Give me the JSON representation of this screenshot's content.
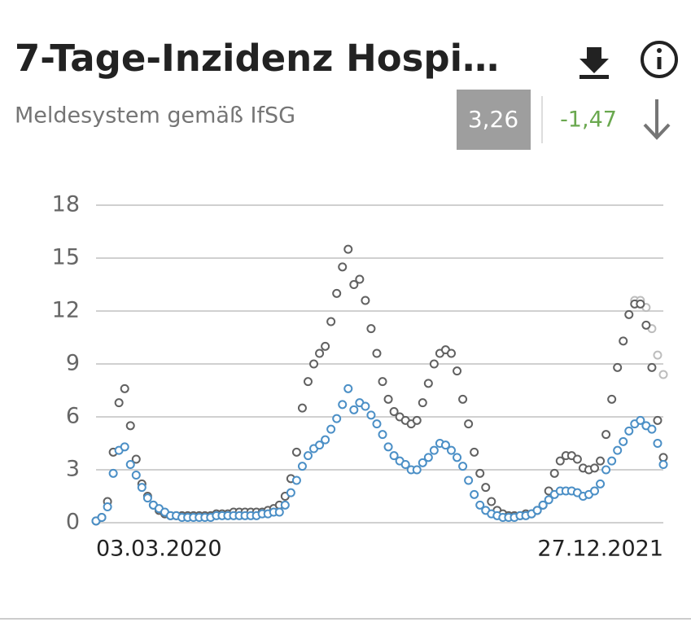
{
  "header": {
    "title": "7-Tage-Inzidenz Hospi…",
    "subtitle": "Meldesystem gemäß IfSG",
    "value": "3,26",
    "change": "-1,47"
  },
  "chart_data": {
    "type": "scatter",
    "categories": [
      "03.03.2020",
      null,
      null,
      null,
      null,
      null,
      null,
      null,
      null,
      null,
      null,
      null,
      null,
      null,
      null,
      null,
      null,
      null,
      null,
      null,
      null,
      null,
      null,
      null,
      null,
      null,
      null,
      null,
      null,
      null,
      null,
      null,
      null,
      null,
      null,
      null,
      null,
      null,
      null,
      null,
      null,
      null,
      null,
      null,
      null,
      null,
      null,
      null,
      null,
      null,
      null,
      null,
      null,
      null,
      null,
      null,
      null,
      null,
      null,
      null,
      null,
      null,
      null,
      null,
      null,
      null,
      null,
      null,
      null,
      null,
      null,
      null,
      null,
      null,
      null,
      null,
      null,
      null,
      null,
      null,
      null,
      null,
      null,
      null,
      null,
      null,
      null,
      null,
      null,
      null,
      null,
      null,
      null,
      null,
      null,
      null,
      null,
      null,
      null,
      "27.12.2021"
    ],
    "series": [
      {
        "color": "#bdbdbd",
        "values": [
          null,
          null,
          null,
          null,
          null,
          null,
          null,
          null,
          null,
          null,
          null,
          null,
          null,
          null,
          null,
          null,
          null,
          null,
          null,
          null,
          null,
          null,
          null,
          null,
          null,
          null,
          null,
          null,
          null,
          null,
          null,
          null,
          null,
          null,
          null,
          null,
          null,
          null,
          null,
          null,
          null,
          null,
          null,
          null,
          null,
          null,
          null,
          null,
          null,
          null,
          null,
          null,
          null,
          null,
          null,
          null,
          null,
          null,
          null,
          null,
          null,
          null,
          null,
          null,
          null,
          null,
          null,
          null,
          null,
          null,
          null,
          null,
          null,
          null,
          null,
          null,
          null,
          null,
          null,
          null,
          null,
          null,
          null,
          null,
          null,
          null,
          null,
          null,
          null,
          null,
          null,
          null,
          null,
          null,
          12.6,
          12.6,
          12.2,
          11,
          9.5,
          8.4
        ]
      },
      {
        "color": "#616161",
        "values": [
          0.1,
          0.3,
          1.2,
          4,
          6.8,
          7.6,
          5.5,
          3.6,
          2.2,
          1.5,
          1,
          0.7,
          0.5,
          0.4,
          0.4,
          0.4,
          0.4,
          0.4,
          0.4,
          0.4,
          0.4,
          0.5,
          0.5,
          0.5,
          0.6,
          0.6,
          0.6,
          0.6,
          0.6,
          0.6,
          0.7,
          0.8,
          1,
          1.5,
          2.5,
          4,
          6.5,
          8,
          9,
          9.6,
          10,
          11.4,
          13,
          14.5,
          15.5,
          13.5,
          13.8,
          12.6,
          11,
          9.6,
          8,
          7,
          6.3,
          6,
          5.8,
          5.6,
          5.8,
          6.8,
          7.9,
          9,
          9.6,
          9.8,
          9.6,
          8.6,
          7,
          5.6,
          4,
          2.8,
          2,
          1.2,
          0.7,
          0.5,
          0.4,
          0.4,
          0.4,
          0.5,
          0.5,
          0.7,
          1,
          1.8,
          2.8,
          3.5,
          3.8,
          3.8,
          3.6,
          3.1,
          3,
          3.1,
          3.5,
          5,
          7,
          8.8,
          10.3,
          11.8,
          12.4,
          12.4,
          11.2,
          8.8,
          5.8,
          3.7
        ]
      },
      {
        "color": "#4b8fc6",
        "values": [
          0.1,
          0.3,
          0.9,
          2.8,
          4.1,
          4.3,
          3.3,
          2.7,
          2,
          1.4,
          1,
          0.8,
          0.6,
          0.4,
          0.4,
          0.3,
          0.3,
          0.3,
          0.3,
          0.3,
          0.3,
          0.4,
          0.4,
          0.4,
          0.4,
          0.4,
          0.4,
          0.4,
          0.4,
          0.5,
          0.5,
          0.6,
          0.6,
          1,
          1.7,
          2.4,
          3.2,
          3.8,
          4.2,
          4.4,
          4.7,
          5.3,
          5.9,
          6.7,
          7.6,
          6.4,
          6.8,
          6.6,
          6.1,
          5.6,
          5,
          4.3,
          3.8,
          3.5,
          3.3,
          3,
          3,
          3.4,
          3.7,
          4.1,
          4.5,
          4.4,
          4.1,
          3.7,
          3.2,
          2.4,
          1.6,
          1,
          0.7,
          0.5,
          0.4,
          0.3,
          0.3,
          0.3,
          0.4,
          0.4,
          0.5,
          0.7,
          1,
          1.3,
          1.6,
          1.8,
          1.8,
          1.8,
          1.7,
          1.5,
          1.6,
          1.8,
          2.2,
          3,
          3.5,
          4.1,
          4.6,
          5.2,
          5.6,
          5.8,
          5.5,
          5.3,
          4.5,
          3.3
        ]
      }
    ],
    "ylim": [
      0,
      18
    ],
    "yticks": [
      0,
      3,
      6,
      9,
      12,
      15,
      18
    ],
    "grid": true
  }
}
